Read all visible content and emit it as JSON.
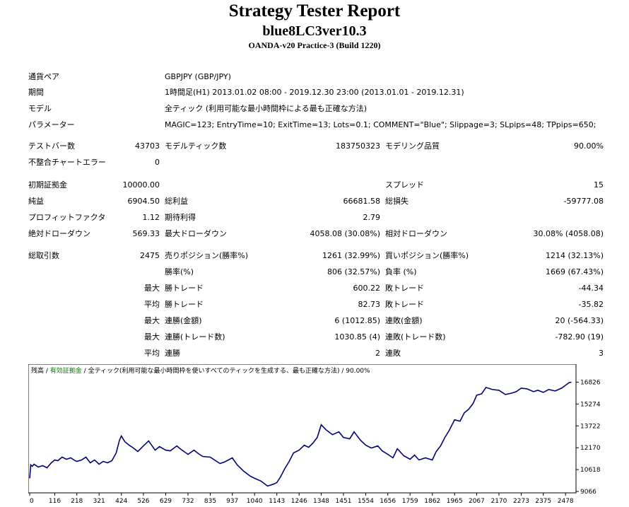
{
  "header": {
    "title": "Strategy Tester Report",
    "ea_name": "blue8LC3ver10.3",
    "server": "OANDA-v20 Practice-3 (Build 1220)"
  },
  "settings": {
    "symbol_label": "通貨ペア",
    "symbol": "GBPJPY (GBP/JPY)",
    "period_label": "期間",
    "period": "1時間足(H1) 2013.01.02 08:00 - 2019.12.30 23:00 (2013.01.01 - 2019.12.31)",
    "model_label": "モデル",
    "model": "全ティック (利用可能な最小時間枠による最も正確な方法)",
    "params_label": "パラメーター",
    "params": "MAGIC=123; EntryTime=10; ExitTime=13; Lots=0.1; COMMENT=\"Blue\"; Slippage=3; SLpips=48; TPpips=650;"
  },
  "stats": {
    "bars_label": "テストバー数",
    "bars": "43703",
    "ticks_label": "モデルティック数",
    "ticks": "183750323",
    "quality_label": "モデリング品質",
    "quality": "90.00%",
    "mismatch_label": "不整合チャートエラー",
    "mismatch": "0",
    "deposit_label": "初期証拠金",
    "deposit": "10000.00",
    "spread_label": "スプレッド",
    "spread": "15",
    "net_label": "純益",
    "net": "6904.50",
    "gross_profit_label": "総利益",
    "gross_profit": "66681.58",
    "gross_loss_label": "総損失",
    "gross_loss": "-59777.08",
    "pf_label": "プロフィットファクタ",
    "pf": "1.12",
    "expected_label": "期待利得",
    "expected": "2.79",
    "abs_dd_label": "絶対ドローダウン",
    "abs_dd": "569.33",
    "max_dd_label": "最大ドローダウン",
    "max_dd": "4058.08 (30.08%)",
    "rel_dd_label": "相対ドローダウン",
    "rel_dd": "30.08% (4058.08)",
    "trades_label": "総取引数",
    "trades": "2475",
    "short_label": "売りポジション(勝率%)",
    "short": "1261 (32.99%)",
    "long_label": "買いポジション(勝率%)",
    "long": "1214 (32.13%)",
    "win_label": "勝率(%)",
    "win": "806 (32.57%)",
    "loss_label": "負率 (%)",
    "loss": "1669 (67.43%)",
    "max_label": "最大",
    "avg_label": "平均",
    "win_trade_label": "勝トレード",
    "loss_trade_label": "敗トレード",
    "max_win": "600.22",
    "max_loss": "-44.34",
    "avg_win": "82.73",
    "avg_loss": "-35.82",
    "consec_win_money_label": "連勝(金額)",
    "consec_loss_money_label": "連敗(金額)",
    "consec_win_money": "6 (1012.85)",
    "consec_loss_money": "20 (-564.33)",
    "consec_win_count_label": "連勝(トレード数)",
    "consec_loss_count_label": "連敗(トレード数)",
    "consec_win_count": "1030.85 (4)",
    "consec_loss_count": "-782.90 (19)",
    "avg_consec_win_label": "連勝",
    "avg_consec_loss_label": "連敗",
    "avg_consec_win": "2",
    "avg_consec_loss": "3"
  },
  "chart_data": {
    "type": "line",
    "caption_balance": "残高",
    "caption_sep1": " / ",
    "caption_equity": "有効証拠金",
    "caption_sep2": " / ",
    "caption_rest": "全ティック(利用可能な最小時間枠を使いすべてのティックを生成する、最も正確な方法) / 90.00%",
    "line_color": "#000080",
    "x_ticks": [
      0,
      116,
      218,
      321,
      424,
      526,
      629,
      732,
      835,
      937,
      1040,
      1143,
      1246,
      1348,
      1451,
      1554,
      1656,
      1759,
      1862,
      1965,
      2067,
      2170,
      2273,
      2375,
      2478
    ],
    "y_ticks": [
      9066,
      10618,
      12170,
      13722,
      15274,
      16826
    ],
    "xlim": [
      0,
      2510
    ],
    "ylim": [
      9066,
      17300
    ],
    "series": [
      {
        "x": [
          0,
          5,
          12,
          20,
          40,
          60,
          80,
          100,
          116,
          130,
          150,
          170,
          190,
          210,
          218,
          240,
          260,
          280,
          300,
          321,
          340,
          360,
          380,
          400,
          415,
          424,
          440,
          460,
          480,
          500,
          526,
          550,
          580,
          600,
          629,
          650,
          680,
          700,
          732,
          760,
          780,
          800,
          835,
          860,
          880,
          900,
          937,
          960,
          990,
          1020,
          1040,
          1070,
          1100,
          1130,
          1143,
          1160,
          1180,
          1200,
          1220,
          1246,
          1270,
          1290,
          1310,
          1330,
          1348,
          1370,
          1400,
          1430,
          1451,
          1480,
          1500,
          1530,
          1554,
          1580,
          1610,
          1630,
          1656,
          1680,
          1700,
          1730,
          1759,
          1780,
          1800,
          1830,
          1862,
          1880,
          1900,
          1920,
          1940,
          1965,
          1990,
          2010,
          2030,
          2050,
          2067,
          2090,
          2110,
          2140,
          2170,
          2200,
          2230,
          2250,
          2273,
          2300,
          2330,
          2350,
          2375,
          2400,
          2430,
          2460,
          2478,
          2495,
          2505
        ],
        "y": [
          10000,
          10950,
          10850,
          11000,
          10800,
          10900,
          10750,
          11100,
          11300,
          11250,
          11500,
          11350,
          11450,
          11250,
          11200,
          11300,
          11500,
          11100,
          11300,
          11000,
          11200,
          11100,
          11250,
          11800,
          12700,
          13000,
          12600,
          12350,
          12150,
          11900,
          12300,
          12650,
          12000,
          12250,
          12000,
          11950,
          12300,
          12050,
          11700,
          12000,
          11750,
          11550,
          11500,
          11250,
          11050,
          11150,
          11450,
          10950,
          10500,
          10150,
          10000,
          9800,
          9450,
          9600,
          9700,
          10100,
          10700,
          11200,
          11800,
          12000,
          12350,
          12200,
          12500,
          12900,
          13800,
          13450,
          13100,
          13300,
          12900,
          12800,
          13300,
          12700,
          12350,
          12150,
          12300,
          11950,
          11700,
          11450,
          12100,
          11600,
          11350,
          11650,
          11300,
          11450,
          11300,
          11900,
          12300,
          12900,
          13400,
          14150,
          14050,
          14650,
          14900,
          15300,
          15900,
          16000,
          16450,
          16300,
          16250,
          15950,
          16050,
          16150,
          16400,
          16350,
          16150,
          16250,
          16100,
          16300,
          16200,
          16400,
          16600,
          16800,
          16820
        ]
      }
    ]
  }
}
